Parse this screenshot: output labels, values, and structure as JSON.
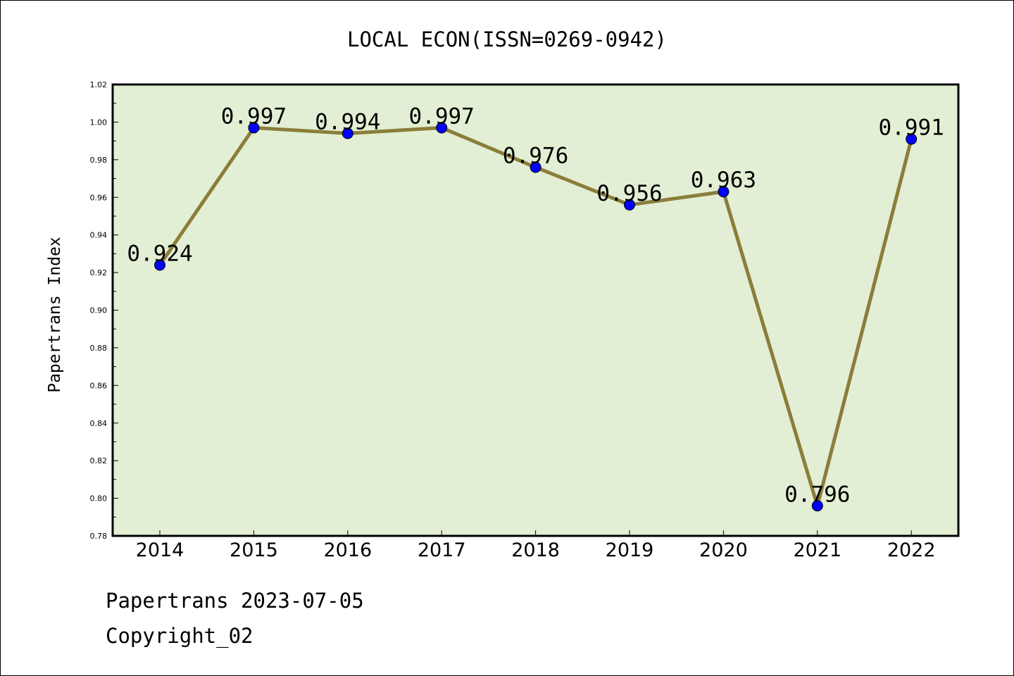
{
  "chart_data": {
    "type": "line",
    "title": "LOCAL ECON(ISSN=0269-0942)",
    "xlabel": "",
    "ylabel": "Papertrans Index",
    "categories": [
      "2014",
      "2015",
      "2016",
      "2017",
      "2018",
      "2019",
      "2020",
      "2021",
      "2022"
    ],
    "values": [
      0.924,
      0.997,
      0.994,
      0.997,
      0.976,
      0.956,
      0.963,
      0.796,
      0.991
    ],
    "data_labels": [
      "0.924",
      "0.997",
      "0.994",
      "0.997",
      "0.976",
      "0.956",
      "0.963",
      "0.796",
      "0.991"
    ],
    "ylim": [
      0.78,
      1.02
    ],
    "yticks": [
      "0.78",
      "0.80",
      "0.82",
      "0.84",
      "0.86",
      "0.88",
      "0.90",
      "0.92",
      "0.94",
      "0.96",
      "0.98",
      "1.00",
      "1.02"
    ],
    "grid": false,
    "legend": "none",
    "colors": {
      "line": "#8B7D3A",
      "marker": "#0000FF",
      "plot_background": "#E2EFD4"
    }
  },
  "footer": {
    "source": "Papertrans 2023-07-05",
    "copyright": "Copyright_02"
  }
}
